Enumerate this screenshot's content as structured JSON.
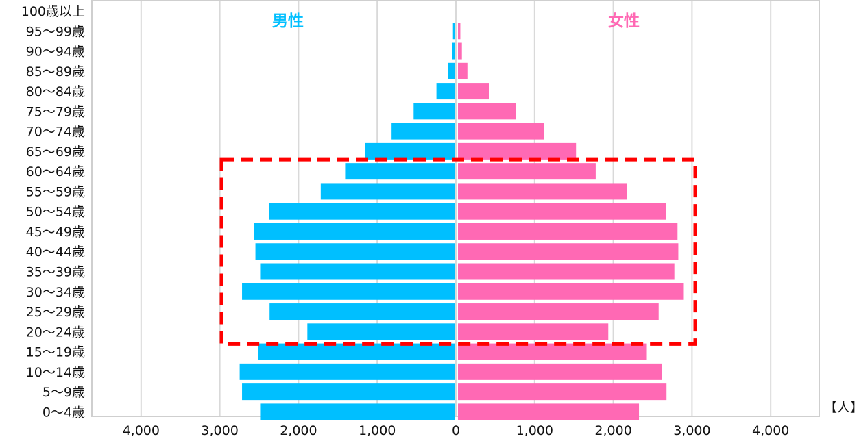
{
  "chart_data": {
    "type": "bar",
    "orientation": "horizontal",
    "subtype": "population-pyramid",
    "categories": [
      "100歳以上",
      "95〜99歳",
      "90〜94歳",
      "85〜89歳",
      "80〜84歳",
      "75〜79歳",
      "70〜74歳",
      "65〜69歳",
      "60〜64歳",
      "55〜59歳",
      "50〜54歳",
      "45〜49歳",
      "40〜44歳",
      "35〜39歳",
      "30〜34歳",
      "25〜29歳",
      "20〜24歳",
      "15〜19歳",
      "10〜14歳",
      "5〜9歳",
      "0〜4歳"
    ],
    "series": [
      {
        "name": "男性",
        "color": "#00BFFF",
        "values": [
          0,
          20,
          30,
          80,
          230,
          520,
          800,
          1140,
          1390,
          1700,
          2360,
          2550,
          2530,
          2470,
          2700,
          2350,
          1870,
          2500,
          2730,
          2700,
          2470
        ]
      },
      {
        "name": "女性",
        "color": "#FF69B4",
        "values": [
          0,
          30,
          50,
          120,
          400,
          740,
          1090,
          1500,
          1750,
          2150,
          2640,
          2790,
          2800,
          2750,
          2870,
          2550,
          1910,
          2400,
          2590,
          2650,
          2300
        ]
      }
    ],
    "xlim": [
      -4600,
      4600
    ],
    "xticks": [
      -4000,
      -3000,
      -2000,
      -1000,
      0,
      1000,
      2000,
      3000,
      4000
    ],
    "xtick_labels": [
      "4,000",
      "3,000",
      "2,000",
      "1,000",
      "0",
      "1,000",
      "2,000",
      "3,000",
      "4,000"
    ],
    "unit": "【人】",
    "grid": true,
    "highlight": {
      "from_category": "60〜64歳",
      "to_category": "20〜24歳",
      "style": "red dashed box",
      "color": "#FF0000"
    }
  }
}
